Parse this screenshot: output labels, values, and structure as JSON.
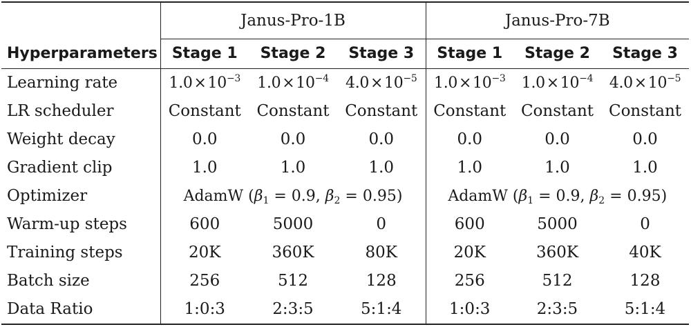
{
  "table": {
    "groups": [
      "Janus-Pro-1B",
      "Janus-Pro-7B"
    ],
    "header_label": "Hyperparameters",
    "stages": [
      "Stage 1",
      "Stage 2",
      "Stage 3",
      "Stage 1",
      "Stage 2",
      "Stage 3"
    ],
    "learning_rate": {
      "label": "Learning rate",
      "values": [
        {
          "mantissa": "1.0",
          "times": "×",
          "base": "10",
          "exp": "−3"
        },
        {
          "mantissa": "1.0",
          "times": "×",
          "base": "10",
          "exp": "−4"
        },
        {
          "mantissa": "4.0",
          "times": "×",
          "base": "10",
          "exp": "−5"
        },
        {
          "mantissa": "1.0",
          "times": "×",
          "base": "10",
          "exp": "−3"
        },
        {
          "mantissa": "1.0",
          "times": "×",
          "base": "10",
          "exp": "−4"
        },
        {
          "mantissa": "4.0",
          "times": "×",
          "base": "10",
          "exp": "−5"
        }
      ]
    },
    "lr_scheduler": {
      "label": "LR scheduler",
      "values": [
        "Constant",
        "Constant",
        "Constant",
        "Constant",
        "Constant",
        "Constant"
      ]
    },
    "weight_decay": {
      "label": "Weight decay",
      "values": [
        "0.0",
        "0.0",
        "0.0",
        "0.0",
        "0.0",
        "0.0"
      ]
    },
    "gradient_clip": {
      "label": "Gradient clip",
      "values": [
        "1.0",
        "1.0",
        "1.0",
        "1.0",
        "1.0",
        "1.0"
      ]
    },
    "optimizer": {
      "label": "Optimizer",
      "values": [
        {
          "name": "AdamW",
          "open": "(",
          "b": "β",
          "sub1": "1",
          "eq1": " = 0.9, ",
          "sub2": "2",
          "eq2": " = 0.95)"
        },
        {
          "name": "AdamW",
          "open": "(",
          "b": "β",
          "sub1": "1",
          "eq1": " = 0.9, ",
          "sub2": "2",
          "eq2": " = 0.95)"
        }
      ]
    },
    "warmup_steps": {
      "label": "Warm-up steps",
      "values": [
        "600",
        "5000",
        "0",
        "600",
        "5000",
        "0"
      ]
    },
    "training_steps": {
      "label": "Training steps",
      "values": [
        "20K",
        "360K",
        "80K",
        "20K",
        "360K",
        "40K"
      ]
    },
    "batch_size": {
      "label": "Batch size",
      "values": [
        "256",
        "512",
        "128",
        "256",
        "512",
        "128"
      ]
    },
    "data_ratio": {
      "label": "Data Ratio",
      "values": [
        "1:0:3",
        "2:3:5",
        "5:1:4",
        "1:0:3",
        "2:3:5",
        "5:1:4"
      ]
    }
  }
}
